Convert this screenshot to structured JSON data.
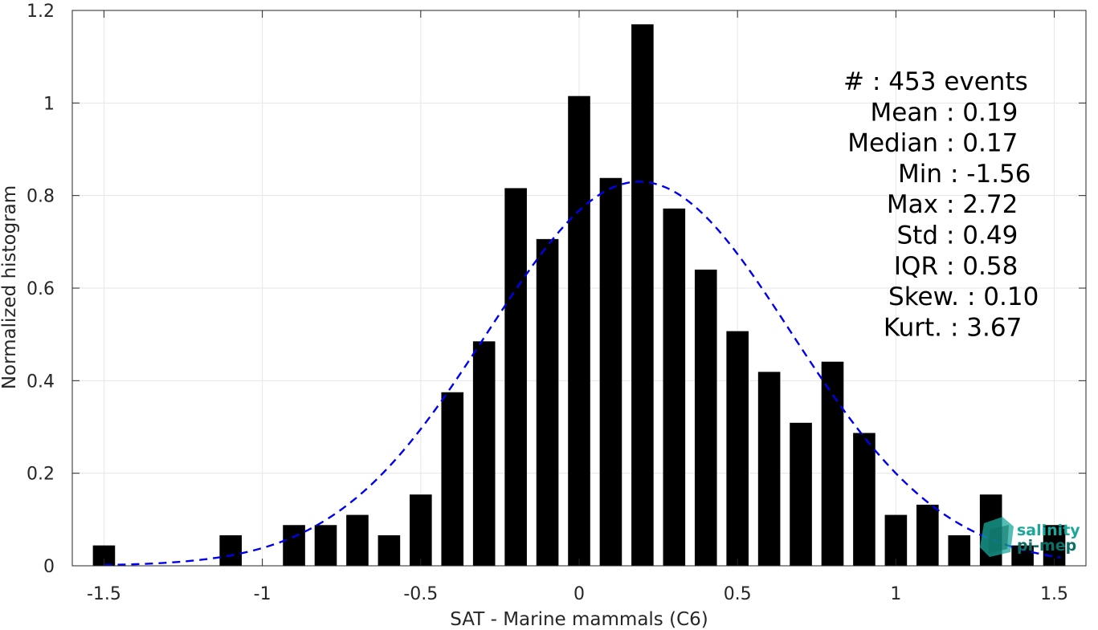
{
  "chart_data": {
    "type": "bar",
    "xlabel": "SAT - Marine mammals (C6)",
    "ylabel": "Normalized histogram",
    "xlim": [
      -1.6,
      1.6
    ],
    "ylim": [
      0,
      1.2
    ],
    "grid": true,
    "x_ticks": [
      -1.5,
      -1,
      -0.5,
      0,
      0.5,
      1,
      1.5
    ],
    "x_tick_labels": [
      "-1.5",
      "-1",
      "-0.5",
      "0",
      "0.5",
      "1",
      "1.5"
    ],
    "y_ticks": [
      0,
      0.2,
      0.4,
      0.6,
      0.8,
      1,
      1.2
    ],
    "y_tick_labels": [
      "0",
      "0.2",
      "0.4",
      "0.6",
      "0.8",
      "1",
      "1.2"
    ],
    "bar_width": 0.07,
    "bar_color": "#000000",
    "bars": {
      "x": [
        -1.5,
        -1.1,
        -0.9,
        -0.8,
        -0.7,
        -0.6,
        -0.5,
        -0.4,
        -0.3,
        -0.2,
        -0.1,
        0.0,
        0.1,
        0.2,
        0.3,
        0.4,
        0.5,
        0.6,
        0.7,
        0.8,
        0.9,
        1.0,
        1.1,
        1.2,
        1.3,
        1.4,
        1.5
      ],
      "values": [
        0.044,
        0.066,
        0.088,
        0.088,
        0.11,
        0.066,
        0.154,
        0.375,
        0.485,
        0.816,
        0.706,
        1.015,
        0.838,
        1.17,
        0.772,
        0.64,
        0.507,
        0.419,
        0.309,
        0.441,
        0.287,
        0.11,
        0.132,
        0.066,
        0.154,
        0.044,
        0.088
      ]
    },
    "fit_curve": {
      "style": "dashed",
      "color": "#0000ee",
      "mean": 0.19,
      "std": 0.48,
      "peak": 0.83,
      "x_range": [
        -1.5,
        1.52
      ]
    }
  },
  "stats": {
    "lines": [
      {
        "label": "#  ",
        "value": ": 453 events"
      },
      {
        "label": "Mean ",
        "value": ": 0.19"
      },
      {
        "label": "Median ",
        "value": ": 0.17"
      },
      {
        "label": "Min ",
        "value": ": -1.56"
      },
      {
        "label": "Max ",
        "value": ": 2.72"
      },
      {
        "label": "Std ",
        "value": ": 0.49"
      },
      {
        "label": "IQR ",
        "value": ": 0.58"
      },
      {
        "label": "Skew. ",
        "value": ": 0.10"
      },
      {
        "label": "Kurt. ",
        "value": ": 3.67"
      }
    ]
  },
  "logo": {
    "line1": "salinity",
    "line2": "pi-mep",
    "color": "#19a89a"
  }
}
